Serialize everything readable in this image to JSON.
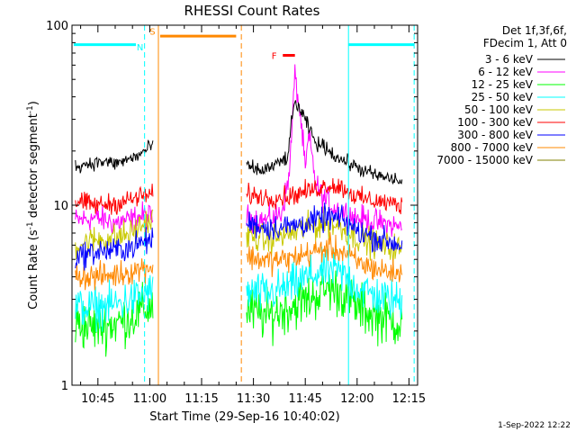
{
  "chart_data": {
    "type": "line",
    "title": "RHESSI Count Rates",
    "xlabel": "Start Time (29-Sep-16 10:40:02)",
    "ylabel_main": "Count Rate (s",
    "ylabel_sup1": "-1",
    "ylabel_mid": " detector segment",
    "ylabel_sup2": "-1",
    "ylabel_end": ")",
    "y_scale": "log",
    "ylim": [
      1,
      100
    ],
    "xlim_minutes": [
      37.5,
      137.5
    ],
    "x_ticks": [
      {
        "minute": 45,
        "label": "10:45"
      },
      {
        "minute": 60,
        "label": "11:00"
      },
      {
        "minute": 75,
        "label": "11:15"
      },
      {
        "minute": 90,
        "label": "11:30"
      },
      {
        "minute": 105,
        "label": "11:45"
      },
      {
        "minute": 120,
        "label": "12:00"
      },
      {
        "minute": 135,
        "label": "12:15"
      }
    ],
    "y_ticks": [
      {
        "value": 1,
        "label": "1"
      },
      {
        "value": 10,
        "label": "10"
      },
      {
        "value": 100,
        "label": "100"
      }
    ],
    "legend_header": [
      "Det 1f,3f,6f,",
      "FDecim 1, Att 0"
    ],
    "legend_placement": "top-right outside",
    "series": [
      {
        "name": "3 - 6 keV",
        "color": "#000000",
        "segment1": [
          [
            38.5,
            16.5
          ],
          [
            42,
            17
          ],
          [
            46,
            17.5
          ],
          [
            50,
            17
          ],
          [
            54,
            18
          ],
          [
            57,
            19
          ],
          [
            60,
            21
          ],
          [
            61,
            22
          ]
        ],
        "segment2": [
          [
            88,
            16.5
          ],
          [
            92,
            15.5
          ],
          [
            96,
            16.5
          ],
          [
            100,
            18.5
          ],
          [
            101,
            28
          ],
          [
            102,
            38
          ],
          [
            104,
            32
          ],
          [
            106,
            27
          ],
          [
            108,
            22
          ],
          [
            111,
            21
          ],
          [
            114,
            18.5
          ],
          [
            118,
            17
          ],
          [
            122,
            15.5
          ],
          [
            126,
            14.5
          ],
          [
            130,
            14
          ],
          [
            133,
            13.5
          ]
        ]
      },
      {
        "name": "6 - 12 keV",
        "color": "#ff00ff",
        "segment1": [
          [
            38.5,
            8.2
          ],
          [
            44,
            8.5
          ],
          [
            50,
            8
          ],
          [
            55,
            8.3
          ],
          [
            58,
            8.8
          ],
          [
            61,
            8.5
          ]
        ],
        "segment2": [
          [
            88,
            8.5
          ],
          [
            94,
            8.2
          ],
          [
            98,
            9
          ],
          [
            100,
            13
          ],
          [
            101,
            22
          ],
          [
            102,
            52
          ],
          [
            103,
            38
          ],
          [
            104,
            26
          ],
          [
            105,
            15
          ],
          [
            106,
            24
          ],
          [
            108,
            13
          ],
          [
            110,
            11
          ],
          [
            114,
            9.5
          ],
          [
            120,
            8.5
          ],
          [
            126,
            8
          ],
          [
            133,
            7.5
          ]
        ]
      },
      {
        "name": "12 - 25 keV",
        "color": "#00ff00",
        "segment1": [
          [
            38.5,
            2.2
          ],
          [
            44,
            2.1
          ],
          [
            50,
            2.2
          ],
          [
            55,
            2.4
          ],
          [
            58,
            2.6
          ],
          [
            61,
            2.8
          ]
        ],
        "segment2": [
          [
            88,
            2.6
          ],
          [
            94,
            2.4
          ],
          [
            100,
            2.7
          ],
          [
            106,
            3
          ],
          [
            112,
            3.5
          ],
          [
            116,
            3.2
          ],
          [
            120,
            2.7
          ],
          [
            126,
            2.4
          ],
          [
            133,
            2.2
          ]
        ]
      },
      {
        "name": "25 - 50 keV",
        "color": "#00ffff",
        "segment1": [
          [
            38.5,
            2.7
          ],
          [
            44,
            2.7
          ],
          [
            50,
            2.8
          ],
          [
            55,
            3
          ],
          [
            58,
            3.2
          ],
          [
            61,
            3.3
          ]
        ],
        "segment2": [
          [
            88,
            3.3
          ],
          [
            94,
            3.2
          ],
          [
            100,
            3.5
          ],
          [
            106,
            4
          ],
          [
            112,
            4.4
          ],
          [
            116,
            4.1
          ],
          [
            120,
            3.5
          ],
          [
            126,
            3.1
          ],
          [
            133,
            2.9
          ]
        ]
      },
      {
        "name": "50 - 100 keV",
        "color": "#c8c800",
        "segment1": [
          [
            38.5,
            6
          ],
          [
            44,
            6.4
          ],
          [
            50,
            6.6
          ],
          [
            55,
            7
          ],
          [
            58,
            7.8
          ],
          [
            61,
            8.3
          ]
        ],
        "segment2": [
          [
            88,
            6.8
          ],
          [
            94,
            6.4
          ],
          [
            100,
            6.9
          ],
          [
            106,
            7.5
          ],
          [
            112,
            8
          ],
          [
            116,
            7.4
          ],
          [
            120,
            6.6
          ],
          [
            126,
            6
          ],
          [
            133,
            5.7
          ]
        ]
      },
      {
        "name": "100 - 300 keV",
        "color": "#ff0000",
        "segment1": [
          [
            38.5,
            10.5
          ],
          [
            44,
            10
          ],
          [
            50,
            10.2
          ],
          [
            55,
            10.8
          ],
          [
            58,
            11.3
          ],
          [
            61,
            11.5
          ]
        ],
        "segment2": [
          [
            88,
            11.5
          ],
          [
            94,
            11
          ],
          [
            100,
            11.2
          ],
          [
            106,
            12
          ],
          [
            112,
            13
          ],
          [
            116,
            12.5
          ],
          [
            120,
            11
          ],
          [
            126,
            10.5
          ],
          [
            133,
            10
          ]
        ]
      },
      {
        "name": "300 - 800 keV",
        "color": "#0000ff",
        "segment1": [
          [
            38.5,
            5.2
          ],
          [
            44,
            5.5
          ],
          [
            50,
            5.6
          ],
          [
            55,
            5.9
          ],
          [
            58,
            6.2
          ],
          [
            61,
            6.5
          ]
        ],
        "segment2": [
          [
            88,
            8
          ],
          [
            94,
            7.5
          ],
          [
            100,
            7.6
          ],
          [
            106,
            8
          ],
          [
            112,
            8.6
          ],
          [
            116,
            8.2
          ],
          [
            120,
            7.2
          ],
          [
            126,
            6.5
          ],
          [
            133,
            6
          ]
        ]
      },
      {
        "name": "800 - 7000 keV",
        "color": "#ff8800",
        "segment1": [
          [
            38.5,
            4.1
          ],
          [
            44,
            4
          ],
          [
            50,
            4.1
          ],
          [
            55,
            4.3
          ],
          [
            58,
            4.5
          ],
          [
            61,
            4.6
          ]
        ],
        "segment2": [
          [
            88,
            5.2
          ],
          [
            94,
            4.9
          ],
          [
            100,
            5
          ],
          [
            106,
            5.4
          ],
          [
            112,
            5.8
          ],
          [
            116,
            5.5
          ],
          [
            120,
            4.8
          ],
          [
            126,
            4.4
          ],
          [
            133,
            4.1
          ]
        ]
      },
      {
        "name": "7000 - 15000 keV",
        "color": "#808000",
        "segment1": [],
        "segment2": []
      }
    ],
    "vertical_lines": [
      {
        "minute": 37.5,
        "color": "#00ffff",
        "style": "solid"
      },
      {
        "minute": 58.5,
        "color": "#00ffff",
        "style": "dashed"
      },
      {
        "minute": 62.5,
        "color": "#ff8800",
        "style": "solid"
      },
      {
        "minute": 86.5,
        "color": "#ff8800",
        "style": "dashed"
      },
      {
        "minute": 117.5,
        "color": "#00ffff",
        "style": "solid"
      },
      {
        "minute": 136.5,
        "color": "#00ffff",
        "style": "dashed"
      }
    ],
    "horizontal_bars": [
      {
        "x0": 38,
        "x1": 56,
        "y": 78,
        "color": "#00ffff"
      },
      {
        "x0": 63,
        "x1": 85,
        "y": 87,
        "color": "#ff8800"
      },
      {
        "x0": 117.5,
        "x1": 136.5,
        "y": 78,
        "color": "#00ffff"
      },
      {
        "x0": 98.5,
        "x1": 102,
        "y": 68,
        "color": "#ff0000"
      }
    ],
    "annotations": [
      {
        "text": "N",
        "minute": 57.2,
        "value": 76,
        "color": "#00ffff"
      },
      {
        "text": "S",
        "minute": 60.8,
        "value": 93,
        "color": "#ff8800"
      },
      {
        "text": "F",
        "minute": 96,
        "value": 68,
        "color": "#ff0000"
      }
    ],
    "timestamp": "1-Sep-2022 12:22"
  }
}
